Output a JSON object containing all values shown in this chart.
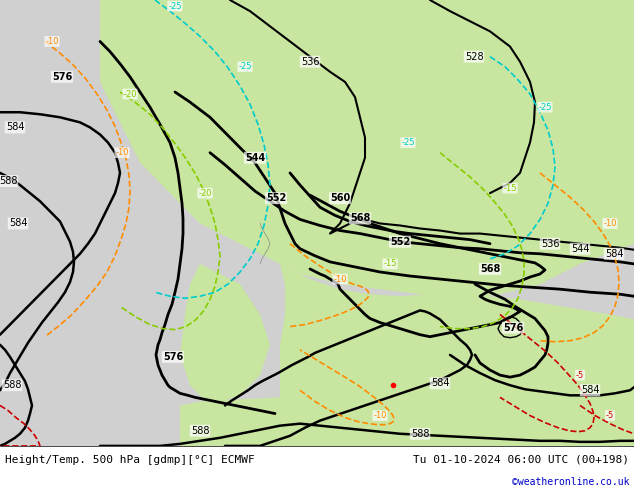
{
  "title_left": "Height/Temp. 500 hPa [gdmp][°C] ECMWF",
  "title_right": "Tu 01-10-2024 06:00 UTC (00+198)",
  "copyright": "©weatheronline.co.uk",
  "bg_land_color": "#c8e6a0",
  "bg_sea_color": "#d8d8d8",
  "bg_frame_color": "#ffffff",
  "footer_bg": "#ffffff",
  "footer_text_color": "#000000",
  "copyright_color": "#0000cc",
  "figsize": [
    6.34,
    4.9
  ],
  "dpi": 100
}
